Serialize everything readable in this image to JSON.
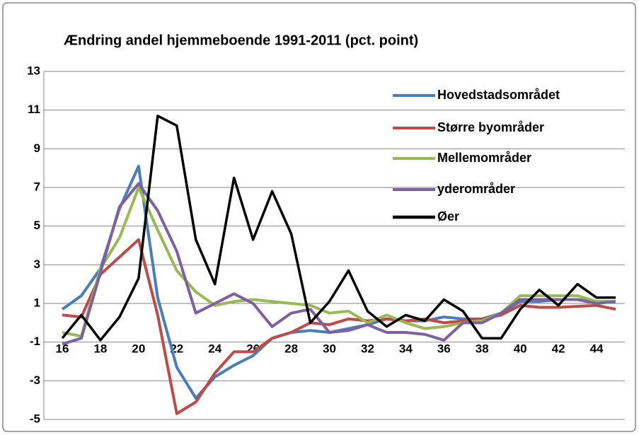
{
  "chart_data": {
    "type": "line",
    "title": "Ændring andel hjemmeboende 1991-2011 (pct. point)",
    "categories": [
      "16",
      null,
      "18",
      null,
      "20",
      null,
      "22",
      null,
      "24",
      null,
      "26",
      null,
      "28",
      null,
      "30",
      null,
      "32",
      null,
      "34",
      null,
      "36",
      null,
      "38",
      null,
      "40",
      null,
      "42",
      null,
      "44",
      null
    ],
    "series": [
      {
        "name": "Hovedstadsområdet",
        "color": "#4a7ebb",
        "values": [
          0.7,
          1.4,
          2.8,
          5.9,
          8.1,
          1.3,
          -2.3,
          -3.9,
          -2.8,
          -2.2,
          -1.7,
          -0.8,
          -0.5,
          -0.4,
          -0.5,
          -0.3,
          -0.1,
          0.2,
          0.1,
          0.1,
          0.3,
          0.2,
          0.2,
          0.5,
          1.1,
          1.1,
          1.2,
          1.2,
          1.1,
          1.1
        ]
      },
      {
        "name": "Større byområder",
        "color": "#be4b48",
        "values": [
          0.4,
          0.3,
          2.5,
          3.4,
          4.3,
          0.4,
          -4.7,
          -4.1,
          -2.6,
          -1.5,
          -1.5,
          -0.8,
          -0.5,
          0.0,
          -0.1,
          0.2,
          0.1,
          0.2,
          0.1,
          0.2,
          0.0,
          0.1,
          0.2,
          0.4,
          0.9,
          0.8,
          0.8,
          0.85,
          0.9,
          0.7
        ]
      },
      {
        "name": "Mellemområder",
        "color": "#98b954",
        "values": [
          -0.5,
          -0.7,
          2.8,
          4.4,
          7.0,
          4.8,
          2.7,
          1.6,
          0.9,
          1.1,
          1.2,
          1.1,
          1.0,
          0.9,
          0.5,
          0.6,
          0.0,
          0.4,
          0.0,
          -0.3,
          -0.2,
          0.0,
          0.1,
          0.5,
          1.4,
          1.4,
          1.4,
          1.4,
          1.1,
          1.1
        ]
      },
      {
        "name": "yderområder",
        "color": "#7d60a0",
        "values": [
          -1.1,
          -0.8,
          2.6,
          6.0,
          7.2,
          5.8,
          3.7,
          0.5,
          1.0,
          1.5,
          1.0,
          -0.2,
          0.5,
          0.7,
          -0.5,
          -0.4,
          -0.1,
          -0.5,
          -0.5,
          -0.6,
          -0.9,
          0.0,
          0.0,
          0.5,
          1.2,
          1.2,
          1.2,
          1.2,
          1.0,
          1.1
        ]
      },
      {
        "name": "Øer",
        "color": "#000000",
        "values": [
          -0.8,
          0.4,
          -0.9,
          0.3,
          2.3,
          10.7,
          10.2,
          4.3,
          2.0,
          7.5,
          4.3,
          6.8,
          4.6,
          0.0,
          1.1,
          2.7,
          0.6,
          -0.2,
          0.4,
          0.1,
          1.2,
          0.6,
          -0.8,
          -0.8,
          0.7,
          1.7,
          0.9,
          2.0,
          1.3,
          1.3
        ]
      }
    ],
    "ylim": [
      -5,
      13
    ],
    "yticks": [
      -5,
      -3,
      -1,
      1,
      3,
      5,
      7,
      9,
      11,
      13
    ],
    "grid": true,
    "legend": "upper right"
  }
}
